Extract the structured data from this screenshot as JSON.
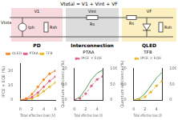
{
  "diagram": {
    "equation": "Vtotal = V1 + Vint + VF",
    "input": "Vtotal",
    "sections": [
      {
        "label": "PD",
        "color": "#f7d9de",
        "voltage": "V1",
        "parts": [
          "Iph",
          "Rsh"
        ]
      },
      {
        "label": "Interconnection",
        "color": "#dcdcdc",
        "voltage": "Vint",
        "parts": [
          "Rs"
        ]
      },
      {
        "label": "QLED",
        "color": "#fcefc2",
        "voltage": "VF",
        "parts": [
          "Rs",
          "Rsh"
        ]
      }
    ]
  },
  "chart_data": [
    {
      "type": "line",
      "x_label": "Total effective bias (V)",
      "y_label": "IPCE × EQE (%)",
      "x": [
        0,
        1,
        2,
        3,
        4,
        5,
        6
      ],
      "series": [
        {
          "name": "QLED",
          "color": "#f08a24",
          "marker": "circle",
          "values": [
            0,
            1,
            4,
            9,
            14,
            18,
            20
          ]
        },
        {
          "name": "PTAA",
          "color": "#e0607e",
          "marker": "circle",
          "values": [
            0,
            0.5,
            2,
            5,
            9,
            13,
            16
          ]
        },
        {
          "name": "TFB",
          "color": "#e8b820",
          "marker": "circle",
          "values": [
            0,
            0.3,
            1,
            3,
            6,
            9,
            12
          ]
        }
      ],
      "xlim": [
        0,
        6
      ],
      "xticks": [
        0,
        2,
        4,
        6
      ],
      "ylim": [
        0,
        25
      ],
      "yticks": [
        0,
        10,
        20
      ],
      "legend": "top"
    },
    {
      "type": "line",
      "title": "PTAA",
      "x_label": "Total effective bias (V)",
      "y_label": "Quantum efficiency (%)",
      "x": [
        0,
        1,
        2,
        3,
        4,
        5
      ],
      "series": [
        {
          "name": "IPCE × EQE",
          "color": "#e0607e",
          "marker": "circle",
          "line_style": "dashed",
          "values": [
            0,
            1,
            4,
            9,
            13,
            15
          ]
        },
        {
          "color": "#3a9a4a",
          "axis": "y2",
          "values": [
            0,
            10,
            35,
            65,
            85,
            95
          ]
        }
      ],
      "xlim": [
        0,
        5
      ],
      "xticks": [
        0,
        2,
        4
      ],
      "ylim": [
        0,
        20
      ],
      "yticks": [
        0,
        10,
        20
      ],
      "y2lim": [
        0,
        100
      ],
      "y2ticks": [
        0,
        50,
        100
      ],
      "legend": "top"
    },
    {
      "type": "line",
      "title": "TFB",
      "x_label": "Total effective bias (V)",
      "y_label": "Quantum efficiency (%)",
      "x": [
        0,
        1,
        2,
        3,
        4,
        5
      ],
      "series": [
        {
          "name": "IPCE × EQE",
          "color": "#e8b820",
          "marker": "circle",
          "line_style": "dashed",
          "values": [
            0,
            0.5,
            2,
            5,
            9,
            12
          ]
        },
        {
          "color": "#3a9a4a",
          "axis": "y2",
          "values": [
            0,
            5,
            20,
            45,
            70,
            88
          ]
        }
      ],
      "xlim": [
        0,
        5
      ],
      "xticks": [
        0,
        2,
        4
      ],
      "ylim": [
        0,
        20
      ],
      "yticks": [
        0,
        10,
        20
      ],
      "y2lim": [
        0,
        100
      ],
      "y2ticks": [
        0,
        50,
        100
      ],
      "legend": "top"
    }
  ]
}
